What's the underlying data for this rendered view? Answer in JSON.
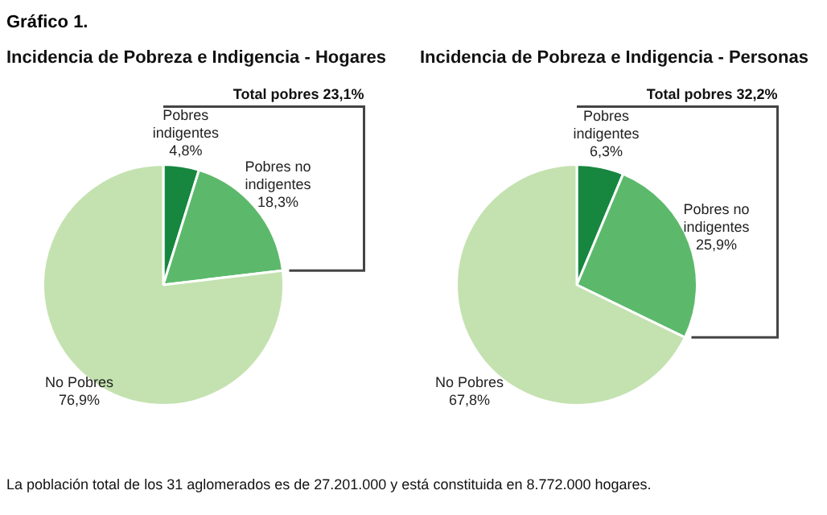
{
  "chart_data": [
    {
      "type": "pie",
      "title": "Incidencia de Pobreza e Indigencia - Hogares",
      "categories": [
        "Pobres indigentes",
        "Pobres no indigentes",
        "No Pobres"
      ],
      "values": [
        4.8,
        18.3,
        76.9
      ],
      "value_labels": [
        "4,8%",
        "18,3%",
        "76,9%"
      ],
      "colors": [
        "#17873f",
        "#5cb96b",
        "#c4e2b0"
      ],
      "legend": false,
      "annotations": [
        "Gráfico 1.",
        "Total pobres 23,1%",
        "La población total de los 31 aglomerados es de 27.201.000 y está constituida en 8.772.000 hogares."
      ]
    },
    {
      "type": "pie",
      "title": "Incidencia de Pobreza e Indigencia - Personas",
      "categories": [
        "Pobres indigentes",
        "Pobres no indigentes",
        "No Pobres"
      ],
      "values": [
        6.3,
        25.9,
        67.8
      ],
      "value_labels": [
        "6,3%",
        "25,9%",
        "67,8%"
      ],
      "colors": [
        "#17873f",
        "#5cb96b",
        "#c4e2b0"
      ],
      "legend": false,
      "annotations": [
        "Total pobres 32,2%"
      ]
    }
  ]
}
